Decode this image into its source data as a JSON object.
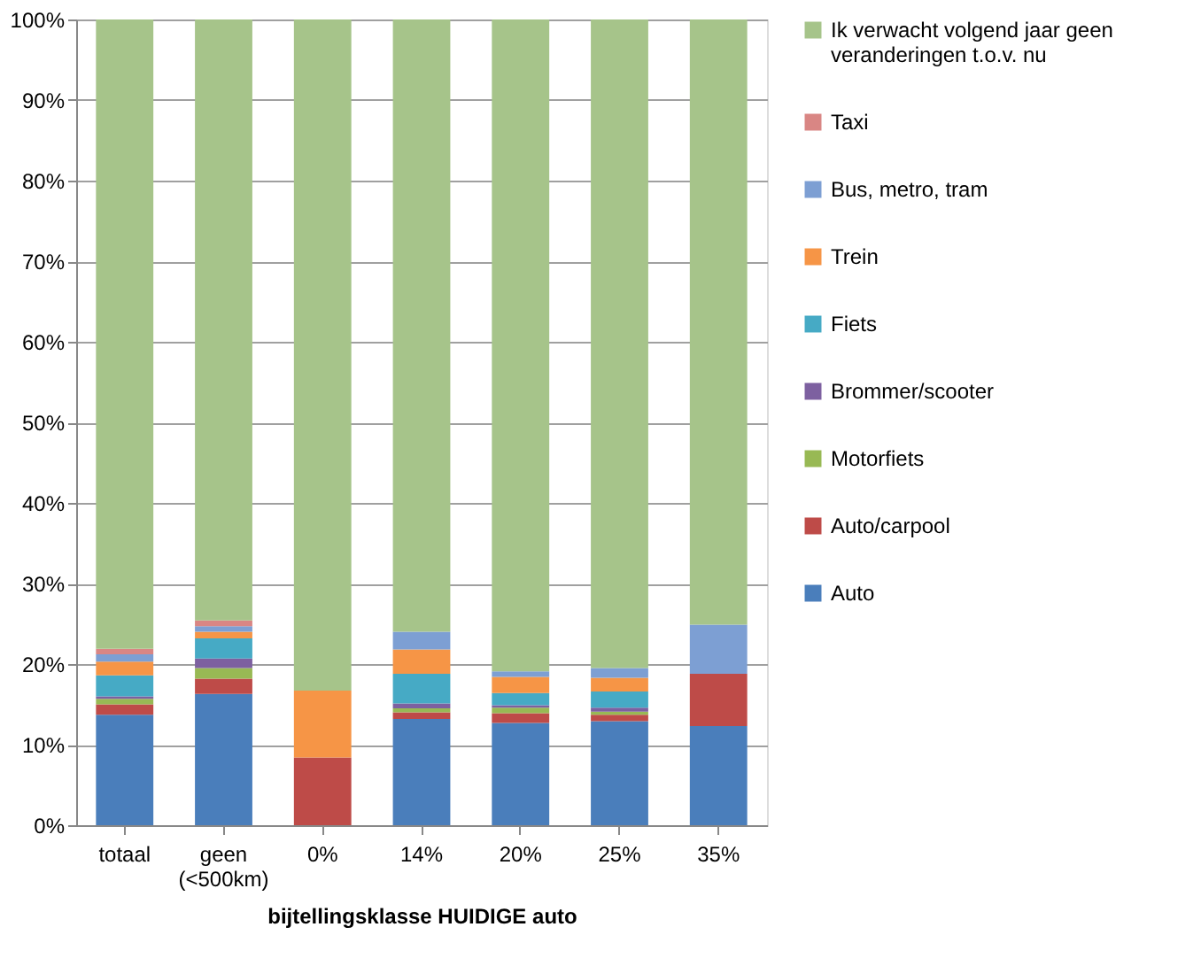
{
  "chart_data": {
    "type": "bar",
    "stacked": true,
    "xlabel": "bijtellingsklasse HUIDIGE auto",
    "categories": [
      "totaal",
      "geen (<500km)",
      "0%",
      "14%",
      "20%",
      "25%",
      "35%"
    ],
    "series": [
      {
        "name": "Auto",
        "color": "#4a7ebb",
        "values": [
          13.7,
          16.3,
          0,
          13.2,
          12.7,
          12.9,
          12.3
        ]
      },
      {
        "name": "Auto/carpool",
        "color": "#be4b48",
        "values": [
          1.3,
          1.9,
          8.4,
          0.8,
          1.2,
          0.8,
          6.5
        ]
      },
      {
        "name": "Motorfiets",
        "color": "#98b954",
        "values": [
          0.7,
          1.3,
          0,
          0.5,
          0.7,
          0.4,
          0
        ]
      },
      {
        "name": "Brommer/scooter",
        "color": "#7d60a0",
        "values": [
          0.3,
          1.2,
          0,
          0.6,
          0.3,
          0.5,
          0
        ]
      },
      {
        "name": "Fiets",
        "color": "#46aac5",
        "values": [
          2.6,
          2.5,
          0,
          3.7,
          1.5,
          2.0,
          0
        ]
      },
      {
        "name": "Trein",
        "color": "#f69546",
        "values": [
          1.7,
          0.8,
          8.3,
          3.0,
          2.0,
          1.7,
          0
        ]
      },
      {
        "name": "Bus, metro, tram",
        "color": "#7d9fd3",
        "values": [
          0.9,
          0.7,
          0,
          2.2,
          0.7,
          1.2,
          6.1
        ]
      },
      {
        "name": "Taxi",
        "color": "#d98684",
        "values": [
          0.7,
          0.7,
          0,
          0,
          0,
          0,
          0
        ]
      },
      {
        "name": "Ik verwacht volgend jaar geen veranderingen t.o.v. nu",
        "color": "#a6c48a",
        "values": [
          78.1,
          74.6,
          83.3,
          76.0,
          80.9,
          80.5,
          75.1
        ]
      }
    ],
    "ylim": [
      0,
      100
    ],
    "yticks": [
      {
        "value": 0,
        "label": "0%"
      },
      {
        "value": 10,
        "label": "10%"
      },
      {
        "value": 20,
        "label": "20%"
      },
      {
        "value": 30,
        "label": "30%"
      },
      {
        "value": 40,
        "label": "40%"
      },
      {
        "value": 50,
        "label": "50%"
      },
      {
        "value": 60,
        "label": "60%"
      },
      {
        "value": 70,
        "label": "70%"
      },
      {
        "value": 80,
        "label": "80%"
      },
      {
        "value": 90,
        "label": "90%"
      },
      {
        "value": 100,
        "label": "100%"
      }
    ],
    "grid": "y",
    "legend": "right"
  }
}
